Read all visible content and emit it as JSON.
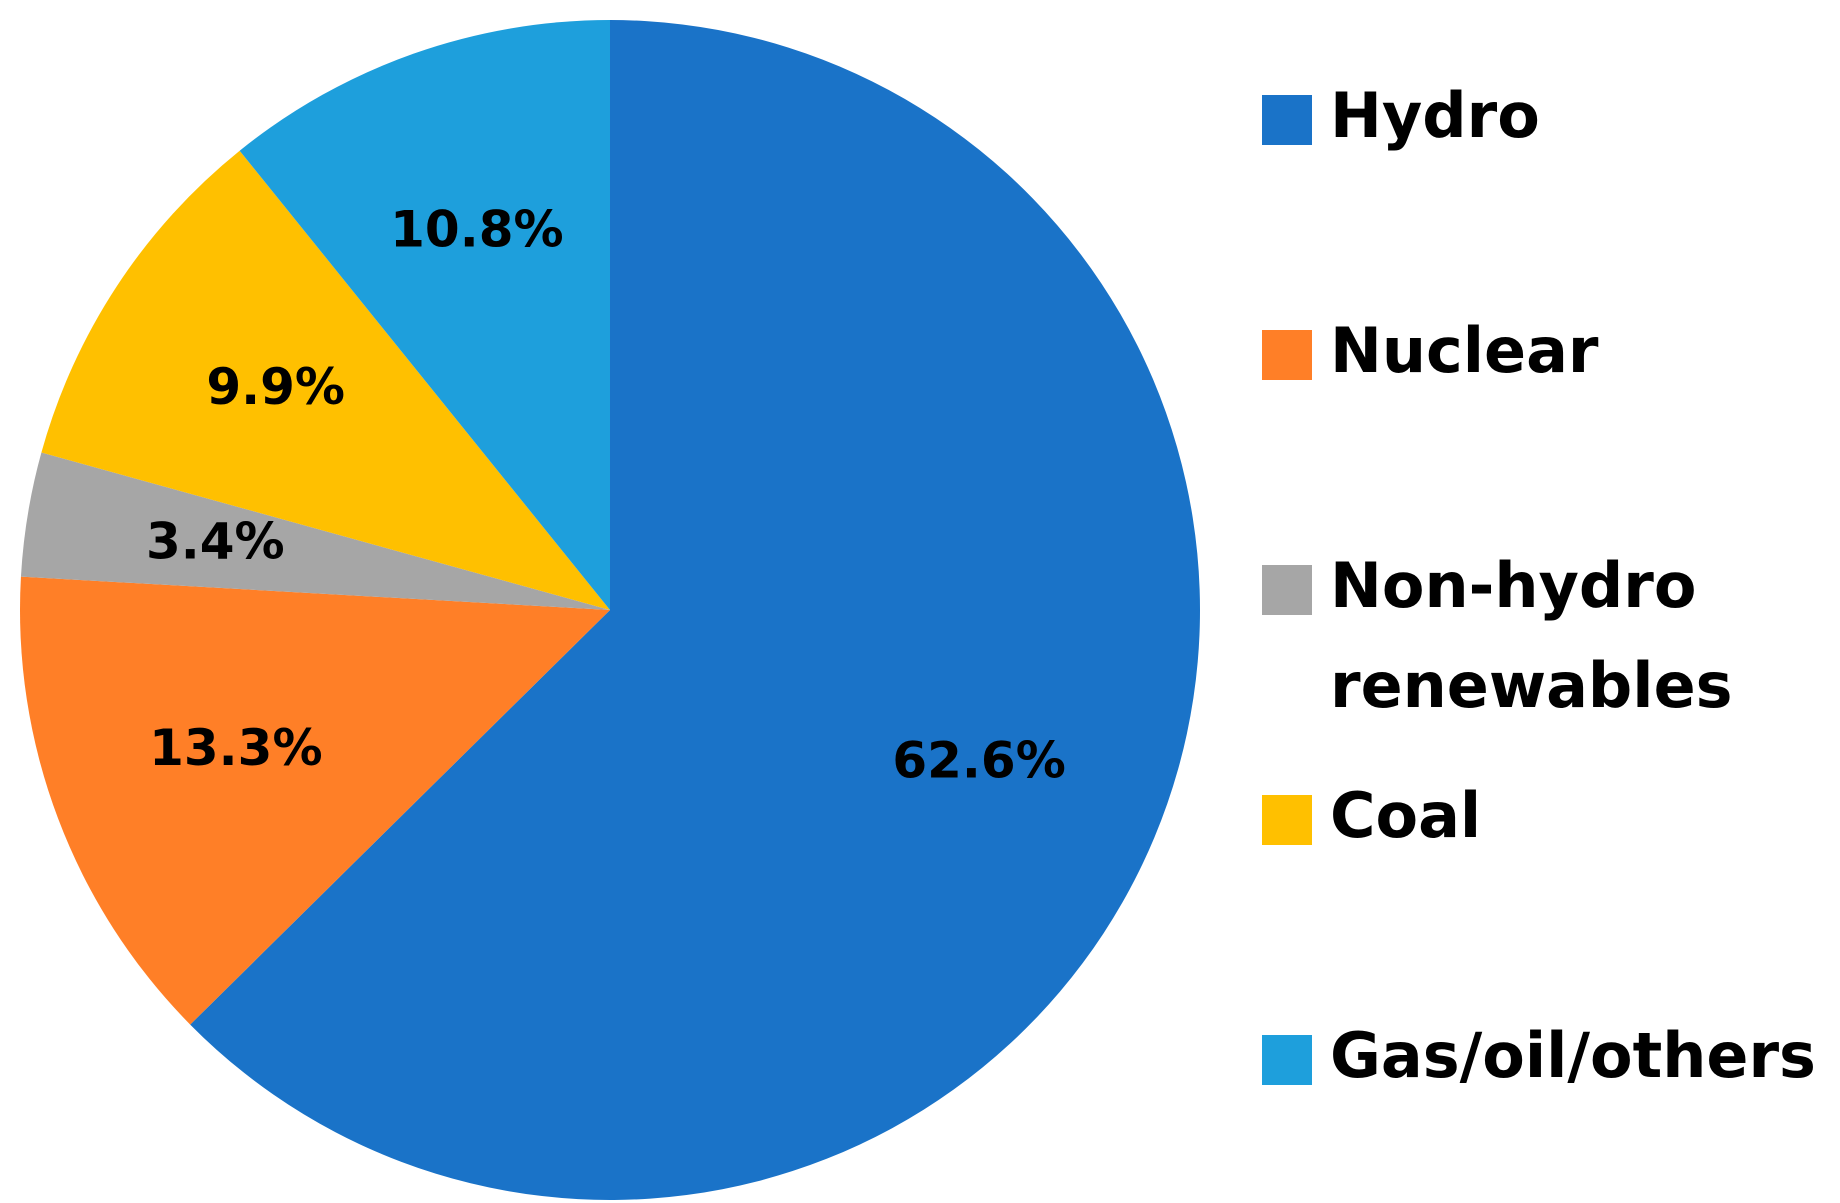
{
  "chart_data": {
    "type": "pie",
    "title": "",
    "start_angle_deg": 0,
    "direction": "clockwise",
    "legend_position": "right",
    "slices": [
      {
        "name": "Hydro",
        "value": 62.6,
        "label": "62.6%",
        "color": "#1A73C8"
      },
      {
        "name": "Nuclear",
        "value": 13.3,
        "label": "13.3%",
        "color": "#FF7F27"
      },
      {
        "name": "Non-hydro renewables",
        "value": 3.4,
        "label": "3.4%",
        "color": "#A6A6A6"
      },
      {
        "name": "Coal",
        "value": 9.9,
        "label": "9.9%",
        "color": "#FFC000"
      },
      {
        "name": "Gas/oil/others",
        "value": 10.8,
        "label": "10.8%",
        "color": "#1E9FDC"
      }
    ],
    "legend": [
      {
        "lines": [
          "Hydro"
        ],
        "color": "#1A73C8"
      },
      {
        "lines": [
          "Nuclear"
        ],
        "color": "#FF7F27"
      },
      {
        "lines": [
          "Non-hydro",
          "renewables"
        ],
        "color": "#A6A6A6"
      },
      {
        "lines": [
          "Coal"
        ],
        "color": "#FFC000"
      },
      {
        "lines": [
          "Gas/oil/others"
        ],
        "color": "#1E9FDC"
      }
    ]
  }
}
